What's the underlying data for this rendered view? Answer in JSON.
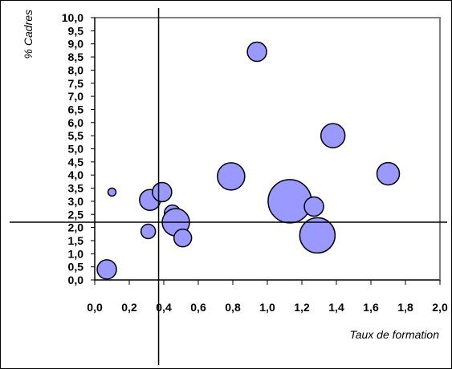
{
  "chart_data": {
    "type": "scatter",
    "variant": "bubble",
    "title": "",
    "xlabel": "Taux de formation",
    "ylabel": "% Cadres",
    "xlim": [
      0,
      2
    ],
    "ylim": [
      0,
      10
    ],
    "x_ticks": [
      "0,0",
      "0,2",
      "0,4",
      "0,6",
      "0,8",
      "1,0",
      "1,2",
      "1,4",
      "1,6",
      "1,8",
      "2,0"
    ],
    "y_ticks": [
      "0,0",
      "0,5",
      "1,0",
      "1,5",
      "2,0",
      "2,5",
      "3,0",
      "3,5",
      "4,0",
      "4,5",
      "5,0",
      "5,5",
      "6,0",
      "6,5",
      "7,0",
      "7,5",
      "8,0",
      "8,5",
      "9,0",
      "9,5",
      "10,0"
    ],
    "reference_lines": {
      "x": 0.37,
      "y": 2.2
    },
    "bubble_color": "#9999ff",
    "bubble_stroke": "#000000",
    "grid": false,
    "legend": "none",
    "points": [
      {
        "x": 0.07,
        "y": 0.4,
        "r": 12
      },
      {
        "x": 0.1,
        "y": 3.35,
        "r": 5
      },
      {
        "x": 0.31,
        "y": 1.85,
        "r": 9
      },
      {
        "x": 0.32,
        "y": 3.05,
        "r": 13
      },
      {
        "x": 0.39,
        "y": 3.35,
        "r": 12
      },
      {
        "x": 0.45,
        "y": 2.55,
        "r": 10
      },
      {
        "x": 0.47,
        "y": 2.2,
        "r": 17
      },
      {
        "x": 0.51,
        "y": 1.6,
        "r": 11
      },
      {
        "x": 0.79,
        "y": 3.95,
        "r": 17
      },
      {
        "x": 0.94,
        "y": 8.7,
        "r": 12
      },
      {
        "x": 1.13,
        "y": 3.0,
        "r": 27
      },
      {
        "x": 1.27,
        "y": 2.8,
        "r": 12
      },
      {
        "x": 1.29,
        "y": 1.7,
        "r": 22
      },
      {
        "x": 1.38,
        "y": 5.5,
        "r": 15
      },
      {
        "x": 1.7,
        "y": 4.05,
        "r": 14
      }
    ]
  }
}
